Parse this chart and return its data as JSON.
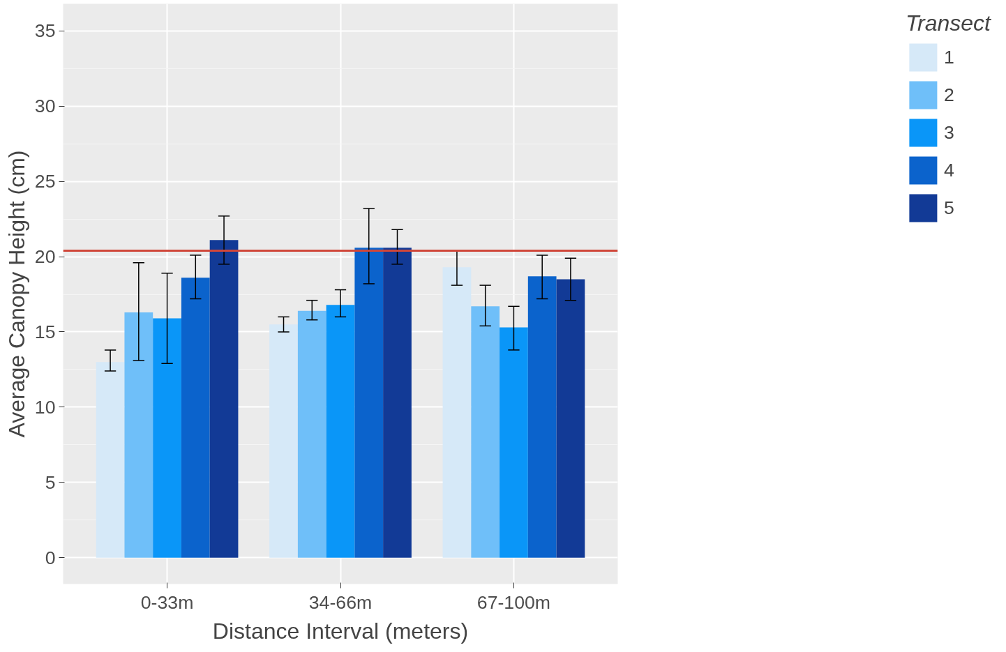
{
  "chart_data": {
    "type": "bar",
    "xlabel": "Distance Interval (meters)",
    "ylabel": "Average Canopy Height (cm)",
    "legend_title": "Transect",
    "categories": [
      "0-33m",
      "34-66m",
      "67-100m"
    ],
    "series": [
      {
        "name": "1",
        "color": "#d6e9f8",
        "values": [
          13.0,
          15.5,
          19.3
        ],
        "errors": [
          [
            12.4,
            13.8
          ],
          [
            15.0,
            16.0
          ],
          [
            18.1,
            20.4
          ]
        ]
      },
      {
        "name": "2",
        "color": "#6fbff9",
        "values": [
          16.3,
          16.4,
          16.7
        ],
        "errors": [
          [
            13.1,
            19.6
          ],
          [
            15.8,
            17.1
          ],
          [
            15.4,
            18.1
          ]
        ]
      },
      {
        "name": "3",
        "color": "#0a96f8",
        "values": [
          15.9,
          16.8,
          15.3
        ],
        "errors": [
          [
            12.9,
            18.9
          ],
          [
            16.0,
            17.8
          ],
          [
            13.8,
            16.7
          ]
        ]
      },
      {
        "name": "4",
        "color": "#0b63cc",
        "values": [
          18.6,
          20.6,
          18.7
        ],
        "errors": [
          [
            17.2,
            20.1
          ],
          [
            18.2,
            23.2
          ],
          [
            17.2,
            20.1
          ]
        ]
      },
      {
        "name": "5",
        "color": "#123a96",
        "values": [
          21.1,
          20.6,
          18.5
        ],
        "errors": [
          [
            19.5,
            22.7
          ],
          [
            19.5,
            21.8
          ],
          [
            17.1,
            19.9
          ]
        ]
      }
    ],
    "ylim": [
      -1.75,
      36.8
    ],
    "yticks": [
      0,
      5,
      10,
      15,
      20,
      25,
      30,
      35
    ],
    "grid": true,
    "legend": "right",
    "ref_lines": [
      {
        "axis": "y",
        "value": 20.4,
        "color": "#d0473a"
      }
    ]
  }
}
